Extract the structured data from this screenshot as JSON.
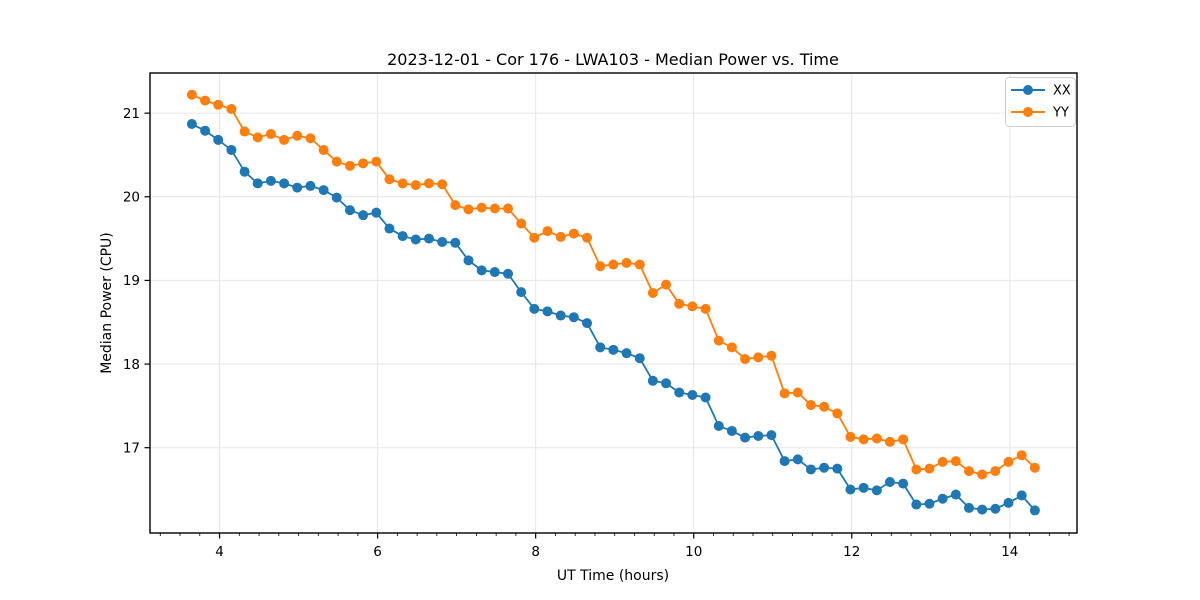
{
  "figure": {
    "title": "2023-12-01 - Cor 176 - LWA103 - Median Power vs. Time",
    "xlabel": "UT Time (hours)",
    "ylabel": "Median Power (CPU)"
  },
  "legend": {
    "position": "upper right",
    "items": [
      {
        "label": "XX",
        "color": "#1f77b4"
      },
      {
        "label": "YY",
        "color": "#ff7f0e"
      }
    ]
  },
  "colors": {
    "series_xx": "#1f77b4",
    "series_yy": "#ff7f0e",
    "grid": "#e6e6e6",
    "spine": "#000000",
    "background": "#ffffff"
  },
  "chart_data": {
    "type": "line",
    "title": "2023-12-01 - Cor 176 - LWA103 - Median Power vs. Time",
    "xlabel": "UT Time (hours)",
    "ylabel": "Median Power (CPU)",
    "grid": true,
    "legend_position": "upper right",
    "marker": "circle",
    "xlim": [
      3.12,
      14.85
    ],
    "ylim": [
      15.98,
      21.48
    ],
    "xticks": [
      4,
      6,
      8,
      10,
      12,
      14
    ],
    "yticks": [
      17,
      18,
      19,
      20,
      21
    ],
    "minor_xtick_step": 0.25,
    "x": [
      3.65,
      3.817,
      3.983,
      4.15,
      4.317,
      4.483,
      4.65,
      4.817,
      4.983,
      5.15,
      5.317,
      5.483,
      5.65,
      5.817,
      5.983,
      6.15,
      6.317,
      6.483,
      6.65,
      6.817,
      6.983,
      7.15,
      7.317,
      7.483,
      7.65,
      7.817,
      7.983,
      8.15,
      8.317,
      8.483,
      8.65,
      8.817,
      8.983,
      9.15,
      9.317,
      9.483,
      9.65,
      9.817,
      9.983,
      10.15,
      10.317,
      10.483,
      10.65,
      10.817,
      10.983,
      11.15,
      11.317,
      11.483,
      11.65,
      11.817,
      11.983,
      12.15,
      12.317,
      12.483,
      12.65,
      12.817,
      12.983,
      13.15,
      13.317,
      13.483,
      13.65,
      13.817,
      13.983,
      14.15,
      14.317
    ],
    "series": [
      {
        "name": "XX",
        "color": "#1f77b4",
        "values": [
          20.87,
          20.79,
          20.68,
          20.56,
          20.3,
          20.16,
          20.19,
          20.16,
          20.11,
          20.13,
          20.08,
          19.99,
          19.84,
          19.78,
          19.81,
          19.62,
          19.53,
          19.49,
          19.5,
          19.46,
          19.45,
          19.24,
          19.12,
          19.1,
          19.08,
          18.86,
          18.66,
          18.63,
          18.58,
          18.56,
          18.49,
          18.2,
          18.17,
          18.13,
          18.07,
          17.8,
          17.77,
          17.66,
          17.63,
          17.6,
          17.26,
          17.2,
          17.12,
          17.14,
          17.15,
          16.84,
          16.86,
          16.74,
          16.76,
          16.75,
          16.5,
          16.52,
          16.49,
          16.59,
          16.57,
          16.32,
          16.33,
          16.39,
          16.44,
          16.28,
          16.26,
          16.27,
          16.34,
          16.43,
          16.25
        ]
      },
      {
        "name": "YY",
        "color": "#ff7f0e",
        "values": [
          21.22,
          21.15,
          21.1,
          21.05,
          20.78,
          20.71,
          20.75,
          20.68,
          20.73,
          20.7,
          20.56,
          20.42,
          20.37,
          20.4,
          20.42,
          20.21,
          20.16,
          20.14,
          20.16,
          20.15,
          19.9,
          19.85,
          19.87,
          19.86,
          19.86,
          19.68,
          19.51,
          19.59,
          19.52,
          19.56,
          19.51,
          19.17,
          19.19,
          19.21,
          19.19,
          18.85,
          18.95,
          18.72,
          18.69,
          18.66,
          18.28,
          18.2,
          18.06,
          18.08,
          18.1,
          17.65,
          17.66,
          17.51,
          17.49,
          17.41,
          17.13,
          17.1,
          17.11,
          17.07,
          17.1,
          16.74,
          16.75,
          16.83,
          16.84,
          16.72,
          16.68,
          16.72,
          16.83,
          16.91,
          16.76
        ]
      }
    ]
  }
}
